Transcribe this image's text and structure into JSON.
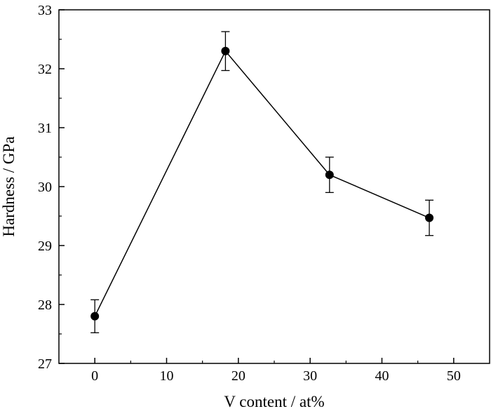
{
  "chart_data": {
    "type": "line",
    "title": "",
    "xlabel": "V content / at%",
    "ylabel": "Hardness / GPa",
    "xlim": [
      -5,
      55
    ],
    "ylim": [
      27,
      33
    ],
    "x_ticks": [
      0,
      10,
      20,
      30,
      40,
      50
    ],
    "y_ticks": [
      27,
      28,
      29,
      30,
      31,
      32,
      33
    ],
    "grid": false,
    "legend": "none",
    "series": [
      {
        "x": [
          0,
          18.2,
          32.7,
          46.6
        ],
        "y": [
          27.8,
          32.3,
          30.2,
          29.47
        ],
        "error": [
          0.28,
          0.33,
          0.3,
          0.3
        ],
        "marker": "circle",
        "color": "#000000"
      }
    ]
  }
}
